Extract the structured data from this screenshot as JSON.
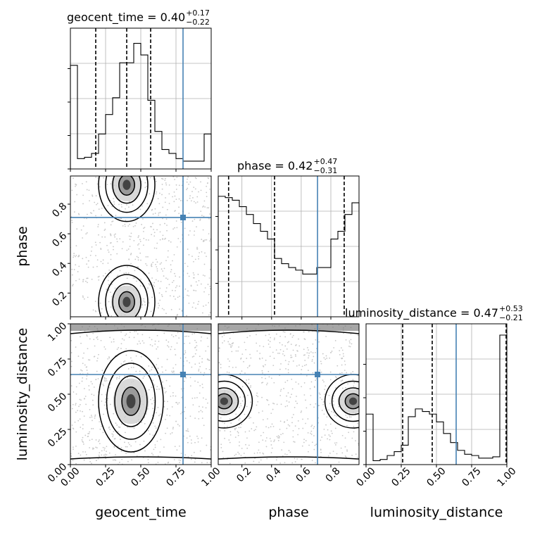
{
  "colors": {
    "truth": "#4682b4",
    "hist": "#000000",
    "density": "#000000",
    "grid": "#b0b0b0"
  },
  "chart_data": {
    "type": "corner",
    "parameters": [
      "geocent_time",
      "phase",
      "luminosity_distance"
    ],
    "ranges": [
      [
        0.0,
        1.0
      ],
      [
        0.04,
        0.99
      ],
      [
        0.0,
        1.0
      ]
    ],
    "truths": [
      0.8,
      0.71,
      0.64
    ],
    "axis_labels": [
      "geocent_time",
      "phase",
      "luminosity_distance"
    ],
    "titles": [
      {
        "text": "geocent_time = 0.40",
        "sup": "+0.17",
        "sub": "−0.22"
      },
      {
        "text": "phase = 0.42",
        "sup": "+0.47",
        "sub": "−0.31"
      },
      {
        "text": "luminosity_distance = 0.47",
        "sup": "+0.53",
        "sub": "−0.21"
      }
    ],
    "quantiles": [
      [
        0.18,
        0.4,
        0.57
      ],
      [
        0.11,
        0.42,
        0.89
      ],
      [
        0.26,
        0.47,
        1.0
      ]
    ],
    "ticks": {
      "geocent_time": [
        "0.00",
        "0.25",
        "0.50",
        "0.75",
        "1.00"
      ],
      "phase": [
        "0.2",
        "0.4",
        "0.6",
        "0.8"
      ],
      "luminosity_distance": [
        "0.00",
        "0.25",
        "0.50",
        "0.75",
        "1.00"
      ]
    },
    "histograms": [
      {
        "param": "geocent_time",
        "bins": 20,
        "counts": [
          0.8,
          0.08,
          0.09,
          0.12,
          0.27,
          0.42,
          0.55,
          0.82,
          0.82,
          0.97,
          0.88,
          0.53,
          0.29,
          0.15,
          0.12,
          0.08,
          0.06,
          0.06,
          0.06,
          0.27
        ]
      },
      {
        "param": "phase",
        "bins": 20,
        "counts": [
          0.93,
          0.92,
          0.9,
          0.85,
          0.79,
          0.72,
          0.66,
          0.6,
          0.45,
          0.41,
          0.38,
          0.36,
          0.33,
          0.33,
          0.38,
          0.38,
          0.6,
          0.66,
          0.79,
          0.88
        ]
      },
      {
        "param": "luminosity_distance",
        "bins": 20,
        "counts": [
          0.39,
          0.03,
          0.04,
          0.07,
          0.1,
          0.15,
          0.37,
          0.43,
          0.41,
          0.39,
          0.33,
          0.24,
          0.17,
          0.11,
          0.08,
          0.07,
          0.05,
          0.05,
          0.06,
          1.0
        ]
      }
    ],
    "density_panels": [
      {
        "x": "geocent_time",
        "y": "phase",
        "modes": [
          [
            0.4,
            0.93
          ],
          [
            0.4,
            0.14
          ]
        ]
      },
      {
        "x": "geocent_time",
        "y": "luminosity_distance",
        "modes": [
          [
            0.43,
            0.45
          ]
        ]
      },
      {
        "x": "phase",
        "y": "luminosity_distance",
        "modes": [
          [
            0.08,
            0.45
          ],
          [
            0.95,
            0.45
          ]
        ]
      }
    ]
  }
}
